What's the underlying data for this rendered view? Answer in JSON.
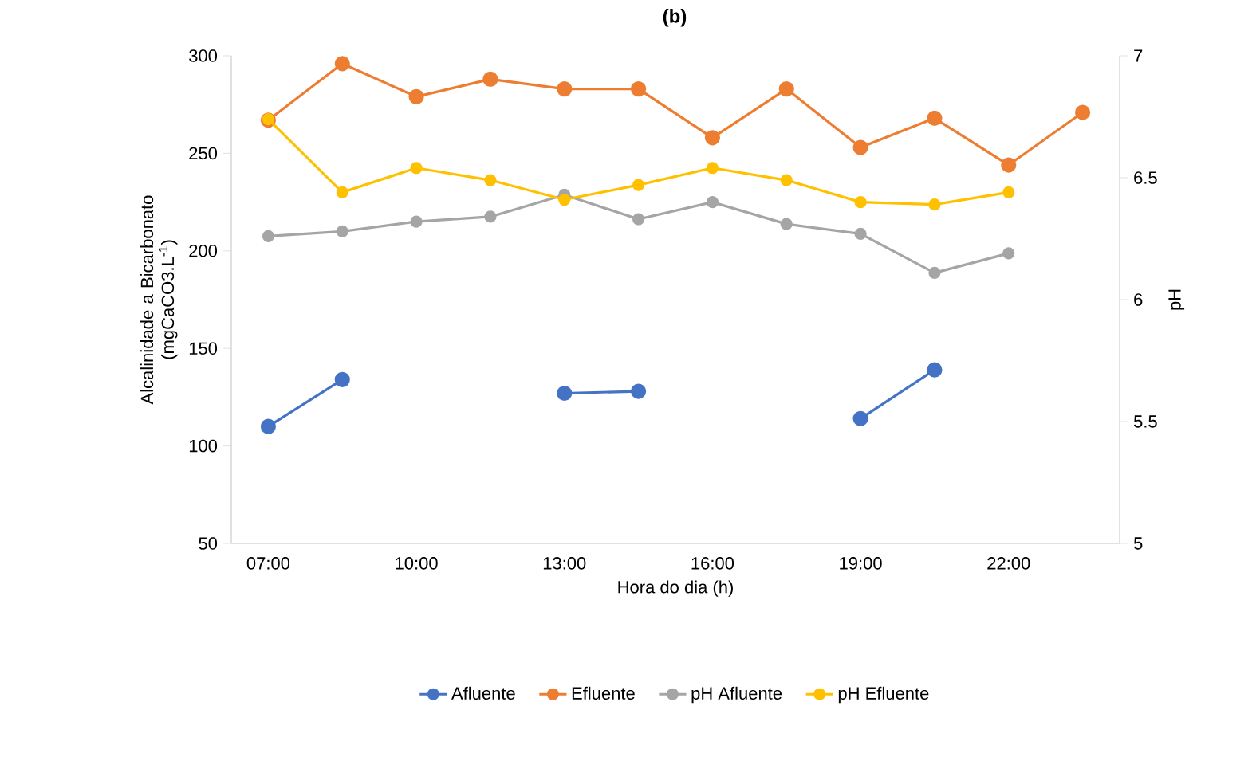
{
  "chart_data": {
    "type": "line",
    "title": "(b)",
    "xlabel": "Hora do dia (h)",
    "ylabel": "Alcalinidade a Bicarbonato (mgCaCO3.L$^{-1}$)",
    "y2label": "pH",
    "categories": [
      "07:00",
      null,
      "10:00",
      null,
      "13:00",
      null,
      "16:00",
      null,
      "19:00",
      null,
      "22:00",
      null
    ],
    "series": [
      {
        "name": "Afluente",
        "color": "#4472c4",
        "values": [
          110,
          134,
          null,
          null,
          127,
          128,
          null,
          null,
          114,
          139,
          null,
          null
        ]
      },
      {
        "name": "Efluente",
        "color": "#ed7d31",
        "values": [
          267,
          296,
          279,
          288,
          283,
          283,
          258,
          283,
          253,
          268,
          244,
          271
        ]
      },
      {
        "name": "pH Afluente",
        "color": "#a5a5a5",
        "axis": "y2",
        "values": [
          6.26,
          6.28,
          6.32,
          6.34,
          6.43,
          6.33,
          6.4,
          6.31,
          6.27,
          6.11,
          6.19,
          null
        ]
      },
      {
        "name": "pH Efluente",
        "color": "#ffc000",
        "axis": "y2",
        "values": [
          6.74,
          6.44,
          6.54,
          6.49,
          6.41,
          6.47,
          6.54,
          6.49,
          6.4,
          6.39,
          6.44,
          null
        ]
      }
    ],
    "ylim": [
      50,
      300
    ],
    "yticks": [
      50,
      100,
      150,
      200,
      250,
      300
    ],
    "y2lim": [
      5,
      7
    ],
    "y2ticks": [
      5,
      5.5,
      6,
      6.5,
      7
    ],
    "grid": false,
    "legend": "bottom",
    "marker": "circle",
    "line_style": "solid"
  }
}
